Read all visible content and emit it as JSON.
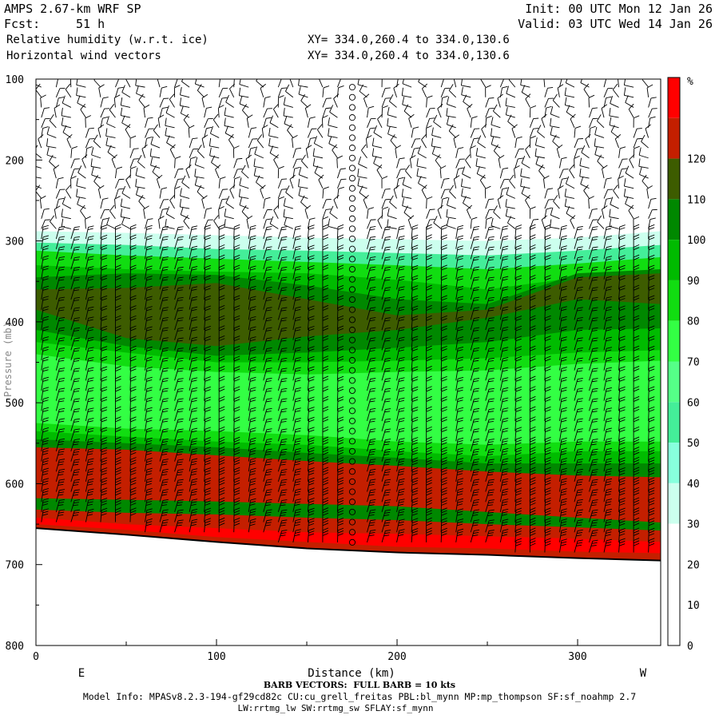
{
  "header": {
    "model": "AMPS 2.67-km WRF SP",
    "init": "Init: 00 UTC Mon 12 Jan 26",
    "fcst_label": "Fcst:",
    "fcst_value": "51 h",
    "valid": "Valid: 03 UTC Wed 14 Jan 26",
    "field1": "Relative humidity (w.r.t. ice)",
    "field2": "Horizontal wind vectors",
    "xy1": "XY= 334.0,260.4 to 334.0,130.6",
    "xy2": "XY= 334.0,260.4 to 334.0,130.6"
  },
  "footer": {
    "barb_note": "BARB VECTORS:  FULL BARB = 10 kts",
    "model_info": "Model Info: MPASv8.2.3-194-gf29cd82c CU:cu_grell_freitas PBL:bl_mynn MP:mp_thompson SF:sf_noahmp 2.7",
    "model_info2": "LW:rrtmg_lw SW:rrtmg_sw SFLAY:sf_mynn"
  },
  "colors": {
    "c30": "#ccffee",
    "c40": "#88ffdd",
    "c50": "#44ee99",
    "c60": "#55ff88",
    "c70": "#33ff44",
    "c80": "#11dd11",
    "c90": "#00bb00",
    "c100": "#008800",
    "c110": "#3d5c00",
    "c120": "#c41f00",
    "c130": "#ff0000"
  },
  "chart_data": {
    "type": "heatmap",
    "xlabel": "Distance (km)",
    "x_ticks": [
      0,
      100,
      200,
      300
    ],
    "xlim": [
      0,
      346
    ],
    "y_ticks": [
      100,
      200,
      300,
      400,
      500,
      600,
      700,
      800
    ],
    "ylim": [
      100,
      800
    ],
    "y_inverted": true,
    "y_axis_label": "Pressure (mb)",
    "left_end_label": "E",
    "right_end_label": "W",
    "colorbar_unit": "%",
    "colorbar_levels": [
      0,
      10,
      20,
      30,
      40,
      50,
      60,
      70,
      80,
      90,
      100,
      110,
      120
    ],
    "terrain_pressure": [
      [
        0,
        655
      ],
      [
        50,
        663
      ],
      [
        100,
        672
      ],
      [
        150,
        680
      ],
      [
        200,
        685
      ],
      [
        250,
        688
      ],
      [
        300,
        692
      ],
      [
        346,
        695
      ]
    ],
    "rh_layers": [
      {
        "level": "c30",
        "top": [
          288,
          290,
          293,
          296,
          298,
          300,
          296,
          288
        ]
      },
      {
        "level": "c50",
        "top": [
          302,
          305,
          310,
          312,
          315,
          318,
          312,
          305
        ]
      },
      {
        "level": "c80",
        "top": [
          312,
          318,
          322,
          326,
          330,
          335,
          328,
          320
        ]
      },
      {
        "level": "c90",
        "top": [
          330,
          335,
          338,
          340,
          348,
          360,
          345,
          335
        ]
      },
      {
        "level": "c100",
        "top": [
          345,
          340,
          342,
          355,
          372,
          378,
          340,
          335
        ]
      },
      {
        "level": "c110",
        "top": [
          360,
          358,
          352,
          372,
          392,
          385,
          345,
          340
        ]
      },
      {
        "level": "c100",
        "top": [
          385,
          420,
          430,
          418,
          410,
          395,
          372,
          378
        ]
      },
      {
        "level": "c90",
        "top": [
          410,
          430,
          442,
          438,
          432,
          425,
          410,
          408
        ]
      },
      {
        "level": "c80",
        "top": [
          425,
          438,
          450,
          450,
          448,
          445,
          438,
          435
        ]
      },
      {
        "level": "c70",
        "top": [
          440,
          455,
          462,
          465,
          462,
          460,
          452,
          448
        ]
      },
      {
        "level": "c80",
        "top": [
          525,
          532,
          535,
          540,
          548,
          552,
          548,
          548
        ]
      },
      {
        "level": "c90",
        "top": [
          535,
          542,
          548,
          552,
          560,
          566,
          560,
          560
        ]
      },
      {
        "level": "c100",
        "top": [
          545,
          550,
          555,
          562,
          568,
          575,
          575,
          575
        ]
      },
      {
        "level": "c120",
        "top": [
          555,
          558,
          565,
          572,
          578,
          585,
          590,
          592
        ]
      },
      {
        "level": "c100",
        "top": [
          618,
          620,
          622,
          625,
          628,
          635,
          642,
          648
        ]
      },
      {
        "level": "c120",
        "top": [
          632,
          636,
          638,
          642,
          645,
          650,
          654,
          658
        ]
      },
      {
        "level": "c130",
        "top": [
          642,
          650,
          655,
          660,
          662,
          665,
          668,
          672
        ]
      },
      {
        "level": "c120",
        "top": [
          650,
          657,
          666,
          672,
          678,
          680,
          684,
          686
        ]
      }
    ]
  }
}
